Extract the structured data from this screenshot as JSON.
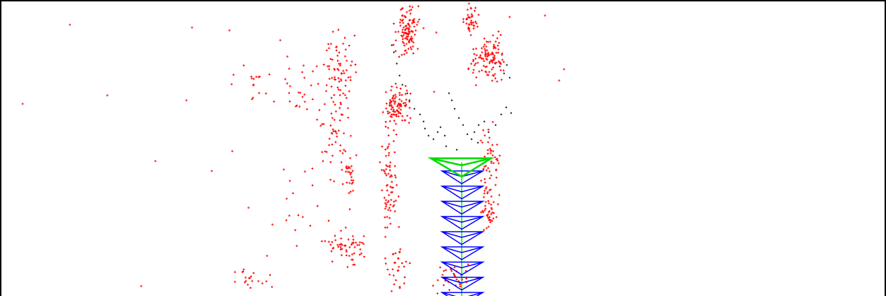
{
  "viewer": {
    "background": "#ffffff",
    "border_color": "#000000"
  },
  "point_cloud": {
    "map_point_color": "#ff0000",
    "active_point_color": "#000000",
    "marker": "cross"
  },
  "trajectory": {
    "current_camera_color": "#00dd00",
    "keyframe_color": "#0000ff",
    "covisibility_graph_color": "#00ee00",
    "keyframe_count": 9
  }
}
